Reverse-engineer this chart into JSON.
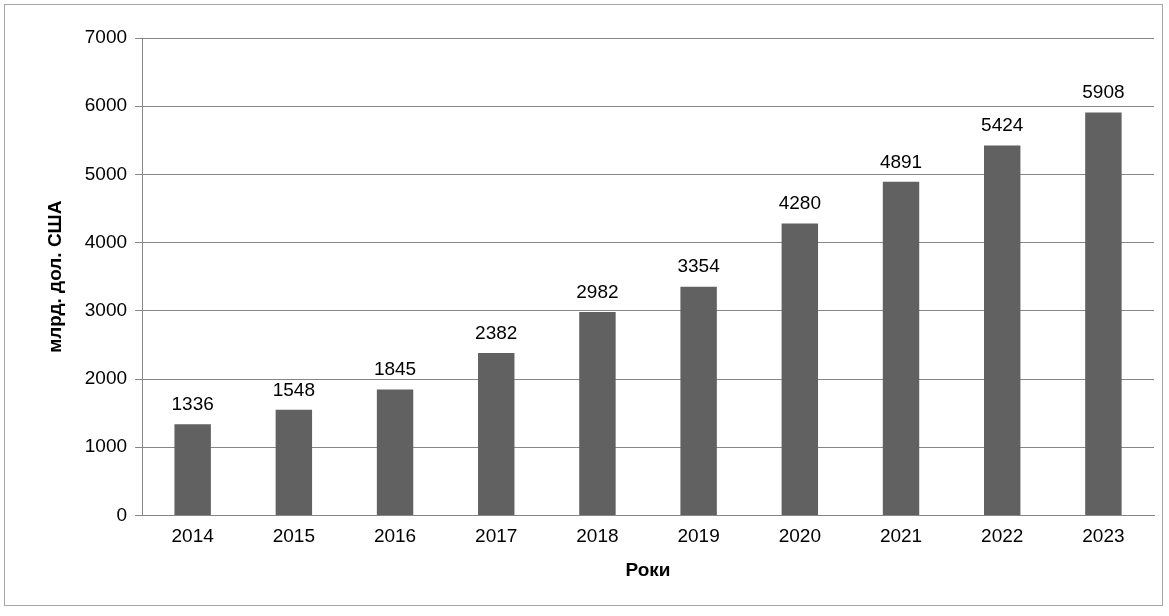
{
  "chart_data": {
    "type": "bar",
    "xlabel": "Роки",
    "ylabel": "млрд. дол. США",
    "categories": [
      "2014",
      "2015",
      "2016",
      "2017",
      "2018",
      "2019",
      "2020",
      "2021",
      "2022",
      "2023"
    ],
    "values": [
      1336,
      1548,
      1845,
      2382,
      2982,
      3354,
      4280,
      4891,
      5424,
      5908
    ],
    "color": "#616161",
    "ylim": [
      0,
      7000
    ],
    "yticks": [
      0,
      1000,
      2000,
      3000,
      4000,
      5000,
      6000,
      7000
    ],
    "grid": "y",
    "legend": false,
    "data_labels": true
  }
}
